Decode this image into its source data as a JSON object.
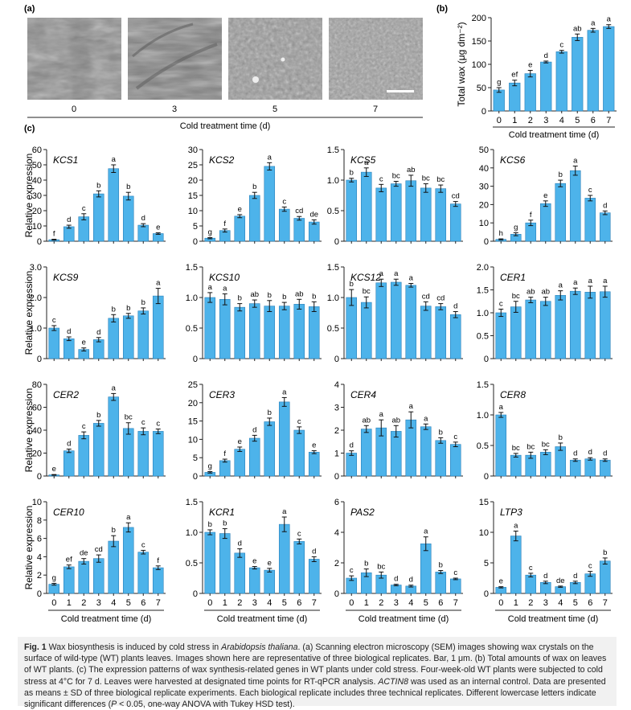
{
  "figure": {
    "panel_a_label": "(a)",
    "panel_b_label": "(b)",
    "panel_c_label": "(c)",
    "sem_labels": [
      "0",
      "3",
      "5",
      "7"
    ],
    "sem_xlabel": "Cold treatment time (d)",
    "caption": {
      "fig_label": "Fig. 1",
      "part1": " Wax biosynthesis is induced by cold stress in ",
      "species": "Arabidopsis thaliana",
      "part2": ". (a) Scanning electron microscopy (SEM) images showing wax crystals on the surface of wild-type (WT) plants leaves. Images shown here are representative of three biological replicates. Bar, 1 μm. (b) Total amounts of wax on leaves of WT plants. (c) The expression patterns of wax synthesis-related genes in WT plants under cold stress. Four-week-old WT plants were subjected to cold stress at 4°C for 7 d. Leaves were harvested at designated time points for RT-qPCR analysis. ",
      "gene": "ACTIN8",
      "part3": " was used as an internal control. Data are presented as means ± SD of three biological replicate experiments. Each biological replicate includes three technical replicates. Different lowercase letters indicate significant differences (",
      "p": "P",
      "part4": " < 0.05, one-way ANOVA with Tukey HSD test)."
    }
  },
  "colors": {
    "bar": "#4db3ea",
    "axis": "#222222",
    "caption_bg": "#f1f1f1"
  },
  "chart_data": [
    {
      "id": "total-wax",
      "type": "bar",
      "title": "",
      "x": [
        "0",
        "1",
        "2",
        "3",
        "4",
        "5",
        "6",
        "7"
      ],
      "values": [
        45,
        60,
        80,
        105,
        127,
        158,
        173,
        181
      ],
      "errors": [
        5,
        6,
        7,
        2,
        3,
        7,
        4,
        4
      ],
      "letters": [
        "g",
        "ef",
        "e",
        "d",
        "c",
        "ab",
        "a",
        "a"
      ],
      "ylabel": "Total wax (μg dm⁻²)",
      "xlabel": "Cold treatment time (d)",
      "ylim": [
        0,
        200
      ],
      "yticks": [
        0,
        50,
        100,
        150,
        200
      ],
      "ytick_labels": [
        "0",
        "50",
        "100",
        "150",
        "200"
      ]
    },
    {
      "id": "KCS1",
      "type": "bar",
      "title": "KCS1",
      "x": [
        "0",
        "1",
        "2",
        "3",
        "4",
        "5",
        "6",
        "7"
      ],
      "values": [
        1,
        9.5,
        16,
        31,
        47.5,
        29.5,
        10.5,
        5
      ],
      "errors": [
        0.3,
        1,
        2,
        2,
        2.5,
        2.5,
        1,
        0.5
      ],
      "letters": [
        "f",
        "d",
        "c",
        "b",
        "a",
        "b",
        "d",
        "e"
      ],
      "ylabel": "Relative expression",
      "ylim": [
        0,
        60
      ],
      "yticks": [
        0,
        10,
        20,
        30,
        40,
        50,
        60
      ],
      "ytick_labels": [
        "0",
        "10",
        "20",
        "30",
        "40",
        "50",
        "60"
      ]
    },
    {
      "id": "KCS2",
      "type": "bar",
      "title": "KCS2",
      "x": [
        "0",
        "1",
        "2",
        "3",
        "4",
        "5",
        "6",
        "7"
      ],
      "values": [
        1,
        3.5,
        8.2,
        15,
        24.5,
        10.5,
        7.5,
        6.3
      ],
      "errors": [
        0.2,
        0.5,
        0.5,
        1,
        1.2,
        0.7,
        0.6,
        0.7
      ],
      "letters": [
        "g",
        "f",
        "e",
        "b",
        "a",
        "c",
        "cd",
        "de"
      ],
      "ylabel": "",
      "ylim": [
        0,
        30
      ],
      "yticks": [
        0,
        5,
        10,
        15,
        20,
        25,
        30
      ],
      "ytick_labels": [
        "0",
        "5",
        "10",
        "15",
        "20",
        "25",
        "30"
      ]
    },
    {
      "id": "KCS5",
      "type": "bar",
      "title": "KCS5",
      "x": [
        "0",
        "1",
        "2",
        "3",
        "4",
        "5",
        "6",
        "7"
      ],
      "values": [
        1.0,
        1.13,
        0.87,
        0.94,
        0.99,
        0.87,
        0.86,
        0.61
      ],
      "errors": [
        0.03,
        0.07,
        0.06,
        0.04,
        0.09,
        0.07,
        0.06,
        0.04
      ],
      "letters": [
        "b",
        "a",
        "c",
        "bc",
        "ab",
        "bc",
        "bc",
        "cd"
      ],
      "ylabel": "",
      "ylim": [
        0,
        1.5
      ],
      "yticks": [
        0,
        0.5,
        1.0,
        1.5
      ],
      "ytick_labels": [
        "0",
        "0.5",
        "1.0",
        "1.5"
      ]
    },
    {
      "id": "KCS6",
      "type": "bar",
      "title": "KCS6",
      "x": [
        "0",
        "1",
        "2",
        "3",
        "4",
        "5",
        "6",
        "7"
      ],
      "values": [
        1,
        3.8,
        10,
        20.5,
        31.5,
        38.5,
        23.5,
        15.5
      ],
      "errors": [
        0.3,
        0.8,
        1.5,
        1.5,
        1.8,
        2.5,
        1.5,
        1
      ],
      "letters": [
        "h",
        "g",
        "f",
        "e",
        "b",
        "a",
        "c",
        "d"
      ],
      "ylabel": "",
      "ylim": [
        0,
        50
      ],
      "yticks": [
        0,
        10,
        20,
        30,
        40,
        50
      ],
      "ytick_labels": [
        "0",
        "10",
        "20",
        "30",
        "40",
        "50"
      ]
    },
    {
      "id": "KCS9",
      "type": "bar",
      "title": "KCS9",
      "x": [
        "0",
        "1",
        "2",
        "3",
        "4",
        "5",
        "6",
        "7"
      ],
      "values": [
        1.0,
        0.65,
        0.3,
        0.62,
        1.32,
        1.4,
        1.56,
        2.05
      ],
      "errors": [
        0.08,
        0.06,
        0.05,
        0.07,
        0.12,
        0.08,
        0.1,
        0.25
      ],
      "letters": [
        "c",
        "d",
        "e",
        "d",
        "b",
        "b",
        "b",
        "a"
      ],
      "ylabel": "Relative expression",
      "ylim": [
        0,
        3.0
      ],
      "yticks": [
        0,
        1,
        2,
        3
      ],
      "ytick_labels": [
        "0",
        "1.0",
        "2.0",
        "3.0"
      ]
    },
    {
      "id": "KCS10",
      "type": "bar",
      "title": "KCS10",
      "x": [
        "0",
        "1",
        "2",
        "3",
        "4",
        "5",
        "6",
        "7"
      ],
      "values": [
        1.0,
        0.97,
        0.84,
        0.9,
        0.86,
        0.86,
        0.89,
        0.85
      ],
      "errors": [
        0.08,
        0.09,
        0.06,
        0.06,
        0.09,
        0.06,
        0.08,
        0.08
      ],
      "letters": [
        "a",
        "a",
        "b",
        "ab",
        "b",
        "b",
        "ab",
        "b"
      ],
      "ylabel": "",
      "ylim": [
        0,
        1.5
      ],
      "yticks": [
        0,
        0.5,
        1.0,
        1.5
      ],
      "ytick_labels": [
        "0",
        "0.5",
        "1.0",
        "1.5"
      ]
    },
    {
      "id": "KCS12",
      "type": "bar",
      "title": "KCS12",
      "x": [
        "0",
        "1",
        "2",
        "3",
        "4",
        "5",
        "6",
        "7"
      ],
      "values": [
        1.0,
        0.92,
        1.24,
        1.25,
        1.2,
        0.86,
        0.85,
        0.72
      ],
      "errors": [
        0.13,
        0.09,
        0.06,
        0.05,
        0.03,
        0.07,
        0.05,
        0.05
      ],
      "letters": [
        "b",
        "bc",
        "a",
        "a",
        "a",
        "cd",
        "cd",
        "d"
      ],
      "ylabel": "",
      "ylim": [
        0,
        1.5
      ],
      "yticks": [
        0,
        0.5,
        1.0,
        1.5
      ],
      "ytick_labels": [
        "0",
        "0.5",
        "1.0",
        "1.5"
      ]
    },
    {
      "id": "CER1",
      "type": "bar",
      "title": "CER1",
      "x": [
        "0",
        "1",
        "2",
        "3",
        "4",
        "5",
        "6",
        "7"
      ],
      "values": [
        1.0,
        1.13,
        1.28,
        1.25,
        1.38,
        1.47,
        1.45,
        1.46
      ],
      "errors": [
        0.08,
        0.12,
        0.06,
        0.09,
        0.1,
        0.07,
        0.13,
        0.12
      ],
      "letters": [
        "c",
        "bc",
        "ab",
        "ab",
        "a",
        "a",
        "a",
        "a"
      ],
      "ylabel": "",
      "ylim": [
        0,
        2.0
      ],
      "yticks": [
        0,
        0.5,
        1.0,
        1.5,
        2.0
      ],
      "ytick_labels": [
        "0",
        "0.5",
        "1.0",
        "1.5",
        "2.0"
      ]
    },
    {
      "id": "CER2",
      "type": "bar",
      "title": "CER2",
      "x": [
        "0",
        "1",
        "2",
        "3",
        "4",
        "5",
        "6",
        "7"
      ],
      "values": [
        1,
        22,
        35.5,
        46,
        69,
        41.5,
        39,
        39
      ],
      "errors": [
        0.3,
        1.5,
        3,
        2.5,
        3,
        5,
        3,
        2
      ],
      "letters": [
        "e",
        "d",
        "c",
        "b",
        "a",
        "bc",
        "c",
        "c"
      ],
      "ylabel": "Relative expression",
      "ylim": [
        0,
        80
      ],
      "yticks": [
        0,
        20,
        40,
        60,
        80
      ],
      "ytick_labels": [
        "0",
        "20",
        "40",
        "60",
        "80"
      ]
    },
    {
      "id": "CER3",
      "type": "bar",
      "title": "CER3",
      "x": [
        "0",
        "1",
        "2",
        "3",
        "4",
        "5",
        "6",
        "7"
      ],
      "values": [
        1,
        4.2,
        7.3,
        10.3,
        14.8,
        20.2,
        12.5,
        6.5
      ],
      "errors": [
        0.2,
        0.4,
        0.6,
        0.8,
        1,
        1.2,
        0.9,
        0.4
      ],
      "letters": [
        "g",
        "f",
        "e",
        "d",
        "b",
        "a",
        "c",
        "e"
      ],
      "ylabel": "",
      "ylim": [
        0,
        25
      ],
      "yticks": [
        0,
        5,
        10,
        15,
        20,
        25
      ],
      "ytick_labels": [
        "0",
        "5",
        "10",
        "15",
        "20",
        "25"
      ]
    },
    {
      "id": "CER4",
      "type": "bar",
      "title": "CER4",
      "x": [
        "0",
        "1",
        "2",
        "3",
        "4",
        "5",
        "6",
        "7"
      ],
      "values": [
        1.0,
        2.05,
        2.1,
        1.95,
        2.45,
        2.15,
        1.55,
        1.38
      ],
      "errors": [
        0.1,
        0.15,
        0.35,
        0.25,
        0.35,
        0.12,
        0.12,
        0.1
      ],
      "letters": [
        "d",
        "ab",
        "a",
        "ab",
        "a",
        "a",
        "b",
        "c"
      ],
      "ylabel": "",
      "ylim": [
        0,
        4
      ],
      "yticks": [
        0,
        1,
        2,
        3,
        4
      ],
      "ytick_labels": [
        "0",
        "1",
        "2",
        "3",
        "4"
      ]
    },
    {
      "id": "CER8",
      "type": "bar",
      "title": "CER8",
      "x": [
        "0",
        "1",
        "2",
        "3",
        "4",
        "5",
        "6",
        "7"
      ],
      "values": [
        1.0,
        0.34,
        0.34,
        0.39,
        0.48,
        0.26,
        0.28,
        0.26
      ],
      "errors": [
        0.04,
        0.03,
        0.05,
        0.04,
        0.06,
        0.02,
        0.02,
        0.02
      ],
      "letters": [
        "a",
        "bc",
        "bc",
        "bc",
        "b",
        "d",
        "d",
        "d"
      ],
      "ylabel": "",
      "ylim": [
        0,
        1.5
      ],
      "yticks": [
        0,
        0.5,
        1.0,
        1.5
      ],
      "ytick_labels": [
        "0",
        "0.5",
        "1.0",
        "1.5"
      ]
    },
    {
      "id": "CER10",
      "type": "bar",
      "title": "CER10",
      "x": [
        "0",
        "1",
        "2",
        "3",
        "4",
        "5",
        "6",
        "7"
      ],
      "values": [
        1,
        2.9,
        3.5,
        3.8,
        5.7,
        7.2,
        4.5,
        2.8
      ],
      "errors": [
        0.1,
        0.2,
        0.3,
        0.4,
        0.6,
        0.5,
        0.2,
        0.2
      ],
      "letters": [
        "g",
        "ef",
        "de",
        "cd",
        "b",
        "a",
        "c",
        "f"
      ],
      "ylabel": "Relative expression",
      "ylim": [
        0,
        10
      ],
      "yticks": [
        0,
        2,
        4,
        6,
        8,
        10
      ],
      "ytick_labels": [
        "0",
        "2",
        "4",
        "6",
        "8",
        "10"
      ]
    },
    {
      "id": "KCR1",
      "type": "bar",
      "title": "KCR1",
      "x": [
        "0",
        "1",
        "2",
        "3",
        "4",
        "5",
        "6",
        "7"
      ],
      "values": [
        1.0,
        0.98,
        0.66,
        0.42,
        0.38,
        1.13,
        0.85,
        0.56
      ],
      "errors": [
        0.04,
        0.08,
        0.07,
        0.02,
        0.03,
        0.12,
        0.04,
        0.04
      ],
      "letters": [
        "b",
        "b",
        "d",
        "e",
        "e",
        "a",
        "c",
        "d"
      ],
      "ylabel": "",
      "ylim": [
        0,
        1.5
      ],
      "yticks": [
        0,
        0.5,
        1.0,
        1.5
      ],
      "ytick_labels": [
        "0",
        "0.5",
        "1.0",
        "1.5"
      ]
    },
    {
      "id": "PAS2",
      "type": "bar",
      "title": "PAS2",
      "x": [
        "0",
        "1",
        "2",
        "3",
        "4",
        "5",
        "6",
        "7"
      ],
      "values": [
        1.0,
        1.35,
        1.2,
        0.55,
        0.48,
        3.25,
        1.4,
        0.95
      ],
      "errors": [
        0.15,
        0.25,
        0.2,
        0.05,
        0.06,
        0.45,
        0.1,
        0.05
      ],
      "letters": [
        "c",
        "b",
        "bc",
        "d",
        "d",
        "a",
        "b",
        "c"
      ],
      "ylabel": "",
      "ylim": [
        0,
        6
      ],
      "yticks": [
        0,
        2,
        4,
        6
      ],
      "ytick_labels": [
        "0",
        "2",
        "4",
        "6"
      ]
    },
    {
      "id": "LTP3",
      "type": "bar",
      "title": "LTP3",
      "x": [
        "0",
        "1",
        "2",
        "3",
        "4",
        "5",
        "6",
        "7"
      ],
      "values": [
        1,
        9.4,
        3,
        1.8,
        1.1,
        1.8,
        3.2,
        5.3
      ],
      "errors": [
        0.1,
        0.8,
        0.3,
        0.2,
        0.1,
        0.2,
        0.4,
        0.5
      ],
      "letters": [
        "e",
        "a",
        "c",
        "d",
        "de",
        "d",
        "c",
        "b"
      ],
      "ylabel": "",
      "ylim": [
        0,
        15
      ],
      "yticks": [
        0,
        5,
        10,
        15
      ],
      "ytick_labels": [
        "0",
        "5",
        "10",
        "15"
      ]
    }
  ],
  "shared_xlabel": "Cold treatment time (d)"
}
